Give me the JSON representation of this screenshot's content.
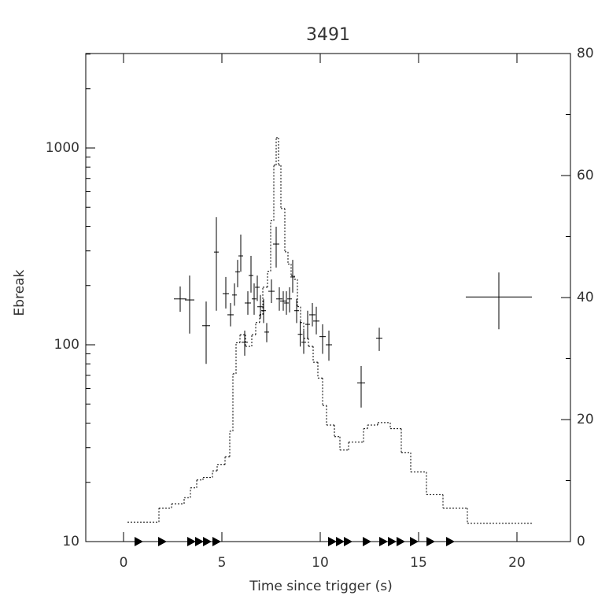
{
  "chart_data": {
    "type": "errorbar",
    "title": "3491",
    "xlabel": "Time since trigger (s)",
    "ylabel": "Ebreak",
    "xlim": [
      -1.92,
      22.72
    ],
    "xticks": [
      0,
      5,
      10,
      15,
      20
    ],
    "ylim": [
      10,
      3020
    ],
    "yticks": [
      10,
      100,
      1000
    ],
    "y_log": true,
    "yminor_ticks": [
      20,
      30,
      40,
      50,
      60,
      70,
      80,
      90,
      200,
      300,
      400,
      500,
      600,
      700,
      800,
      900,
      2000,
      3000
    ],
    "y2lim": [
      0,
      80
    ],
    "y2ticks": [
      0,
      20,
      40,
      60,
      80
    ],
    "y2minor_ticks": [
      10,
      30,
      50,
      70
    ],
    "color": "#000000",
    "points": {
      "x": [
        2.88,
        3.36,
        4.2,
        4.72,
        5.2,
        5.44,
        5.64,
        5.8,
        5.96,
        6.16,
        6.32,
        6.48,
        6.64,
        6.8,
        6.96,
        7.12,
        7.28,
        7.52,
        7.76,
        7.92,
        8.12,
        8.28,
        8.44,
        8.6,
        8.8,
        8.98,
        9.16,
        9.36,
        9.6,
        9.8,
        10.12,
        10.44,
        12.08,
        13.0,
        19.08
      ],
      "xerr": [
        0.32,
        0.24,
        0.2,
        0.12,
        0.16,
        0.16,
        0.12,
        0.12,
        0.12,
        0.16,
        0.16,
        0.12,
        0.12,
        0.12,
        0.16,
        0.12,
        0.12,
        0.16,
        0.16,
        0.16,
        0.16,
        0.12,
        0.12,
        0.12,
        0.12,
        0.12,
        0.12,
        0.12,
        0.16,
        0.16,
        0.16,
        0.16,
        0.2,
        0.16,
        1.68
      ],
      "values": [
        171,
        169,
        125,
        296,
        182,
        142,
        179,
        235,
        283,
        103,
        163,
        225,
        171,
        196,
        156,
        149,
        116,
        187,
        325,
        171,
        167,
        163,
        171,
        221,
        149,
        113,
        103,
        127,
        142,
        132,
        110,
        100,
        64,
        108,
        175
      ],
      "y_low": [
        147,
        114,
        80,
        149,
        153,
        124,
        158,
        196,
        235,
        88,
        142,
        184,
        142,
        167,
        136,
        129,
        103,
        163,
        247,
        149,
        149,
        142,
        146,
        184,
        129,
        98,
        90,
        108,
        124,
        113,
        90,
        83,
        48,
        93,
        120
      ],
      "y_high": [
        198,
        225,
        166,
        445,
        221,
        163,
        205,
        270,
        363,
        118,
        187,
        283,
        205,
        225,
        179,
        171,
        129,
        215,
        398,
        196,
        187,
        187,
        196,
        270,
        171,
        132,
        118,
        149,
        163,
        156,
        127,
        118,
        78,
        122,
        233
      ]
    },
    "histogram": {
      "axis": "y2",
      "bins": [
        0.2,
        1.8,
        2.44,
        3.08,
        3.4,
        3.72,
        4.04,
        4.52,
        4.76,
        5.16,
        5.4,
        5.56,
        5.72,
        5.92,
        6.2,
        6.52,
        6.72,
        6.92,
        7.08,
        7.32,
        7.48,
        7.64,
        7.76,
        7.88,
        8.0,
        8.2,
        8.36,
        8.52,
        8.68,
        8.84,
        9.0,
        9.16,
        9.4,
        9.64,
        9.88,
        10.12,
        10.32,
        10.72,
        11.0,
        11.44,
        12.2,
        12.4,
        12.92,
        13.56,
        14.12,
        14.6,
        15.4,
        16.24,
        17.48,
        20.76
      ],
      "values": [
        3.2,
        5.5,
        6.2,
        7.2,
        8.8,
        10.1,
        10.5,
        11.6,
        12.6,
        13.9,
        18.1,
        27.5,
        32.6,
        33.9,
        32,
        33.9,
        35.9,
        37.2,
        41.7,
        44.3,
        52.6,
        61.7,
        66.2,
        61.7,
        54.6,
        47.5,
        45.5,
        43.6,
        43,
        38.5,
        35.9,
        33.3,
        32,
        29.4,
        26.8,
        22.3,
        19.1,
        17.2,
        15,
        16.3,
        18.5,
        19.1,
        19.5,
        18.5,
        14.6,
        11.4,
        7.7,
        5.5,
        3
      ]
    },
    "markers": {
      "x": [
        0.76,
        1.96,
        3.44,
        3.84,
        4.24,
        4.72,
        10.6,
        11.0,
        11.4,
        12.36,
        13.2,
        13.64,
        14.08,
        14.76,
        15.6,
        16.6
      ]
    }
  }
}
